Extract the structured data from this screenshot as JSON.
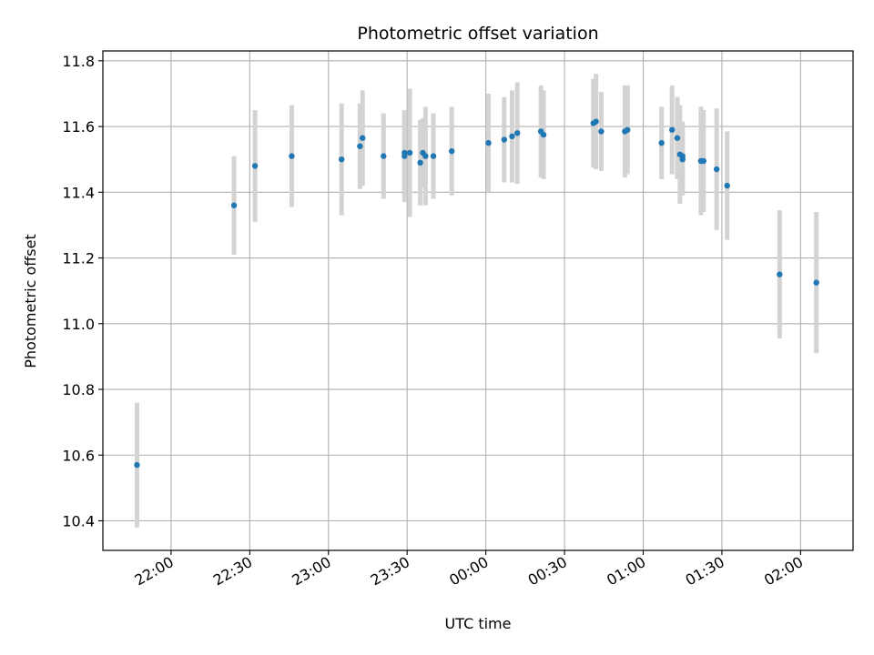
{
  "chart_data": {
    "type": "scatter",
    "title": "Photometric offset variation",
    "xlabel": "UTC time",
    "ylabel": "Photometric offset",
    "xlim": [
      "21:34",
      "02:20"
    ],
    "ylim": [
      10.31,
      11.83
    ],
    "grid": true,
    "y_ticks": [
      10.4,
      10.6,
      10.8,
      11.0,
      11.2,
      11.4,
      11.6,
      11.8
    ],
    "y_tick_labels": [
      "10.4",
      "10.6",
      "10.8",
      "11.0",
      "11.2",
      "11.4",
      "11.6",
      "11.8"
    ],
    "x_ticks": [
      "22:00",
      "22:30",
      "23:00",
      "23:30",
      "00:00",
      "00:30",
      "01:00",
      "01:30",
      "02:00"
    ],
    "x_tick_labels": [
      "22:00",
      "22:30",
      "23:00",
      "23:30",
      "00:00",
      "00:30",
      "01:00",
      "01:30",
      "02:00"
    ],
    "point_color": "#1f77b4",
    "errorbar_color": "#d3d3d3",
    "points": [
      {
        "t": "21:47",
        "y": 10.57,
        "err": 0.19
      },
      {
        "t": "22:24",
        "y": 11.36,
        "err": 0.15
      },
      {
        "t": "22:32",
        "y": 11.48,
        "err": 0.17
      },
      {
        "t": "22:46",
        "y": 11.51,
        "err": 0.155
      },
      {
        "t": "23:05",
        "y": 11.5,
        "err": 0.17
      },
      {
        "t": "23:12",
        "y": 11.54,
        "err": 0.13
      },
      {
        "t": "23:13",
        "y": 11.565,
        "err": 0.145
      },
      {
        "t": "23:21",
        "y": 11.51,
        "err": 0.13
      },
      {
        "t": "23:29",
        "y": 11.51,
        "err": 0.14
      },
      {
        "t": "23:29",
        "y": 11.52,
        "err": 0.13
      },
      {
        "t": "23:31",
        "y": 11.52,
        "err": 0.195
      },
      {
        "t": "23:35",
        "y": 11.49,
        "err": 0.13
      },
      {
        "t": "23:36",
        "y": 11.52,
        "err": 0.105
      },
      {
        "t": "23:37",
        "y": 11.51,
        "err": 0.15
      },
      {
        "t": "23:40",
        "y": 11.51,
        "err": 0.13
      },
      {
        "t": "23:47",
        "y": 11.525,
        "err": 0.135
      },
      {
        "t": "00:01",
        "y": 11.55,
        "err": 0.15
      },
      {
        "t": "00:07",
        "y": 11.56,
        "err": 0.13
      },
      {
        "t": "00:10",
        "y": 11.57,
        "err": 0.14
      },
      {
        "t": "00:12",
        "y": 11.58,
        "err": 0.155
      },
      {
        "t": "00:21",
        "y": 11.585,
        "err": 0.14
      },
      {
        "t": "00:22",
        "y": 11.575,
        "err": 0.135
      },
      {
        "t": "00:41",
        "y": 11.61,
        "err": 0.135
      },
      {
        "t": "00:42",
        "y": 11.615,
        "err": 0.145
      },
      {
        "t": "00:44",
        "y": 11.585,
        "err": 0.12
      },
      {
        "t": "00:53",
        "y": 11.585,
        "err": 0.14
      },
      {
        "t": "00:54",
        "y": 11.59,
        "err": 0.135
      },
      {
        "t": "01:07",
        "y": 11.55,
        "err": 0.11
      },
      {
        "t": "01:11",
        "y": 11.59,
        "err": 0.135
      },
      {
        "t": "01:13",
        "y": 11.565,
        "err": 0.125
      },
      {
        "t": "01:14",
        "y": 11.515,
        "err": 0.15
      },
      {
        "t": "01:15",
        "y": 11.5,
        "err": 0.11
      },
      {
        "t": "01:15",
        "y": 11.51,
        "err": 0.105
      },
      {
        "t": "01:22",
        "y": 11.495,
        "err": 0.165
      },
      {
        "t": "01:23",
        "y": 11.495,
        "err": 0.155
      },
      {
        "t": "01:28",
        "y": 11.47,
        "err": 0.185
      },
      {
        "t": "01:32",
        "y": 11.42,
        "err": 0.165
      },
      {
        "t": "01:52",
        "y": 11.15,
        "err": 0.195
      },
      {
        "t": "02:06",
        "y": 11.125,
        "err": 0.215
      }
    ]
  }
}
